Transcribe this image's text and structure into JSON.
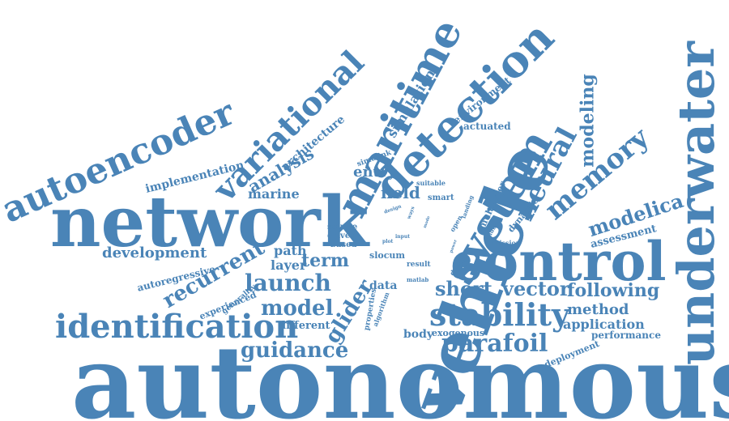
{
  "word_color": "#4a84b7",
  "background": "#ffffff",
  "words": {
    "autonomous": "autonomous",
    "network": "network",
    "vehicle": "vehicle",
    "control": "control",
    "underwater": "underwater",
    "system": "system",
    "detection": "detection",
    "maritime": "maritime",
    "autoencoder": "autoencoder",
    "variational": "variational",
    "identification": "identification",
    "stability": "stability",
    "memory": "memory",
    "neural": "neural",
    "parafoil": "parafoil",
    "launch": "launch",
    "model": "model",
    "short": "short",
    "vector": "vector",
    "following": "following",
    "guidance": "guidance",
    "recurrent": "recurrent",
    "glider": "glider",
    "modelica": "modelica",
    "modeling": "modeling",
    "development": "development",
    "analysis": "analysis",
    "term": "term",
    "field": "field",
    "entry": "entry",
    "marine": "marine",
    "path": "path",
    "layer": "layer",
    "method": "method",
    "application": "application",
    "performance": "performance",
    "simulation": "simulation",
    "architecture": "architecture",
    "implementation": "implementation",
    "autoregressive": "autoregressive",
    "assessment": "assessment",
    "actuated": "actuated",
    "environment": "environment",
    "dynamic": "dynamic",
    "multilayer": "multilayer",
    "data": "data",
    "different": "different",
    "body": "body",
    "exogenous": "exogenous",
    "deployment": "deployment",
    "experienced": "experienced",
    "generality": "generality",
    "slocum": "slocum",
    "source": "source",
    "driven": "driven",
    "based": "based",
    "simulink": "simulink",
    "smart": "smart",
    "suitable": "suitable",
    "design": "design",
    "ways": "ways",
    "input": "input",
    "result": "result",
    "open": "open",
    "landing": "landing",
    "matlab": "matlab",
    "degree": "degree",
    "solution": "solution",
    "mission": "mission",
    "properties": "properties",
    "algorithm": "algorithm",
    "plot": "plot",
    "power": "power",
    "mode": "mode"
  }
}
